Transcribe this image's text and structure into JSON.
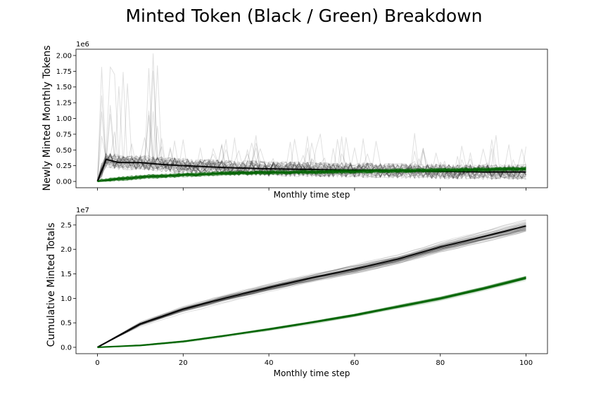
{
  "figure": {
    "title": "Minted Token (Black / Green) Breakdown"
  },
  "chart_data": [
    {
      "type": "line",
      "ylabel": "Newly Minted Monthly Tokens",
      "xlabel": "Monthly time step",
      "xlim": [
        -5,
        105
      ],
      "ylim": [
        -0.1,
        2.1
      ],
      "y_scale_label": "1e6",
      "x_ticks": [
        0,
        20,
        40,
        60,
        80,
        100
      ],
      "x_tick_labels_visible": false,
      "y_ticks": [
        0.0,
        0.25,
        0.5,
        0.75,
        1.0,
        1.25,
        1.5,
        1.75,
        2.0
      ],
      "y_tick_labels": [
        "0.00",
        "0.25",
        "0.50",
        "0.75",
        "1.00",
        "1.25",
        "1.50",
        "1.75",
        "2.00"
      ],
      "series": [
        {
          "color": "#000000",
          "runs": "many overlaid simulation runs",
          "x": [
            0,
            2,
            5,
            10,
            15,
            20,
            30,
            40,
            50,
            60,
            70,
            80,
            90,
            100
          ],
          "values": [
            0.0,
            0.35,
            0.3,
            0.3,
            0.27,
            0.25,
            0.22,
            0.2,
            0.19,
            0.18,
            0.17,
            0.16,
            0.15,
            0.15
          ],
          "spike_max": 2.0
        },
        {
          "color": "#006400",
          "runs": "many overlaid simulation runs",
          "x": [
            0,
            5,
            10,
            20,
            30,
            40,
            50,
            60,
            70,
            80,
            90,
            100
          ],
          "values": [
            0.0,
            0.04,
            0.07,
            0.1,
            0.13,
            0.14,
            0.15,
            0.16,
            0.17,
            0.18,
            0.19,
            0.2
          ]
        }
      ],
      "grid": false
    },
    {
      "type": "line",
      "ylabel": "Cumulative Minted Totals",
      "xlabel": "Monthly time step",
      "xlim": [
        -5,
        105
      ],
      "ylim": [
        -0.13,
        2.7
      ],
      "y_scale_label": "1e7",
      "x_ticks": [
        0,
        20,
        40,
        60,
        80,
        100
      ],
      "x_tick_labels": [
        "0",
        "20",
        "40",
        "60",
        "80",
        "100"
      ],
      "y_ticks": [
        0.0,
        0.5,
        1.0,
        1.5,
        2.0,
        2.5
      ],
      "y_tick_labels": [
        "0.0",
        "0.5",
        "1.0",
        "1.5",
        "2.0",
        "2.5"
      ],
      "series": [
        {
          "color": "#000000",
          "runs": "many overlaid simulation runs",
          "x": [
            0,
            10,
            20,
            30,
            40,
            50,
            60,
            70,
            80,
            90,
            100
          ],
          "values": [
            0.0,
            0.48,
            0.78,
            1.01,
            1.22,
            1.42,
            1.6,
            1.8,
            2.05,
            2.26,
            2.48
          ]
        },
        {
          "color": "#006400",
          "runs": "many overlaid simulation runs",
          "x": [
            0,
            10,
            20,
            30,
            40,
            50,
            60,
            70,
            80,
            90,
            100
          ],
          "values": [
            0.0,
            0.04,
            0.12,
            0.24,
            0.37,
            0.51,
            0.66,
            0.83,
            1.0,
            1.2,
            1.42
          ]
        }
      ],
      "grid": false
    }
  ]
}
